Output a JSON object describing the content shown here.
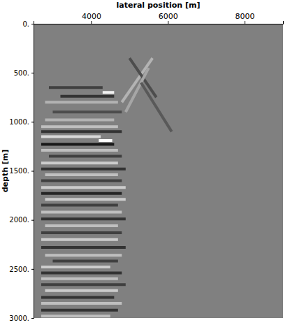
{
  "chart_data": {
    "type": "seismic_section",
    "x_label": "lateral position [m]",
    "y_label": "depth [m]",
    "xlim": [
      2500,
      9000
    ],
    "xticks": [
      4000,
      6000,
      8000
    ],
    "ylim": [
      0,
      3000
    ],
    "yticks": [
      {
        "value": 0,
        "label": "0."
      },
      {
        "value": 500,
        "label": "500."
      },
      {
        "value": 1000,
        "label": "1000."
      },
      {
        "value": 1500,
        "label": "1500."
      },
      {
        "value": 2000,
        "label": "2000."
      },
      {
        "value": 2500,
        "label": "2500."
      },
      {
        "value": 3000,
        "label": "3000."
      }
    ],
    "amplitude_range": [
      -1,
      1
    ],
    "reflectors": [
      {
        "x": [
          2900,
          4300
        ],
        "depth": [
          650,
          650
        ],
        "amplitude": -0.5
      },
      {
        "x": [
          4300,
          4600
        ],
        "depth": [
          700,
          700
        ],
        "amplitude": 0.9
      },
      {
        "x": [
          3200,
          4600
        ],
        "depth": [
          740,
          740
        ],
        "amplitude": -0.6
      },
      {
        "x": [
          2800,
          4700
        ],
        "depth": [
          800,
          800
        ],
        "amplitude": 0.4
      },
      {
        "x": [
          3000,
          4800
        ],
        "depth": [
          900,
          900
        ],
        "amplitude": -0.4
      },
      {
        "x": [
          2800,
          4600
        ],
        "depth": [
          980,
          980
        ],
        "amplitude": 0.4
      },
      {
        "x": [
          2700,
          4700
        ],
        "depth": [
          1050,
          1050
        ],
        "amplitude": 0.5
      },
      {
        "x": [
          2700,
          4800
        ],
        "depth": [
          1100,
          1100
        ],
        "amplitude": -0.6
      },
      {
        "x": [
          2700,
          4250
        ],
        "depth": [
          1150,
          1150
        ],
        "amplitude": 0.7
      },
      {
        "x": [
          4200,
          4550
        ],
        "depth": [
          1190,
          1190
        ],
        "amplitude": 1.0
      },
      {
        "x": [
          2700,
          4600
        ],
        "depth": [
          1230,
          1230
        ],
        "amplitude": -0.8
      },
      {
        "x": [
          2700,
          4700
        ],
        "depth": [
          1290,
          1290
        ],
        "amplitude": 0.5
      },
      {
        "x": [
          2900,
          4800
        ],
        "depth": [
          1350,
          1350
        ],
        "amplitude": -0.5
      },
      {
        "x": [
          2700,
          4700
        ],
        "depth": [
          1420,
          1420
        ],
        "amplitude": 0.6
      },
      {
        "x": [
          2700,
          4900
        ],
        "depth": [
          1480,
          1480
        ],
        "amplitude": -0.6
      },
      {
        "x": [
          2800,
          4700
        ],
        "depth": [
          1540,
          1540
        ],
        "amplitude": 0.5
      },
      {
        "x": [
          2700,
          4800
        ],
        "depth": [
          1600,
          1600
        ],
        "amplitude": -0.5
      },
      {
        "x": [
          2700,
          4900
        ],
        "depth": [
          1670,
          1670
        ],
        "amplitude": 0.6
      },
      {
        "x": [
          2700,
          4800
        ],
        "depth": [
          1730,
          1730
        ],
        "amplitude": -0.7
      },
      {
        "x": [
          2800,
          4900
        ],
        "depth": [
          1790,
          1790
        ],
        "amplitude": 0.6
      },
      {
        "x": [
          2700,
          4700
        ],
        "depth": [
          1850,
          1850
        ],
        "amplitude": -0.5
      },
      {
        "x": [
          2700,
          4800
        ],
        "depth": [
          1920,
          1920
        ],
        "amplitude": 0.5
      },
      {
        "x": [
          2700,
          4900
        ],
        "depth": [
          1990,
          1990
        ],
        "amplitude": -0.6
      },
      {
        "x": [
          2800,
          4700
        ],
        "depth": [
          2060,
          2060
        ],
        "amplitude": 0.5
      },
      {
        "x": [
          2700,
          4800
        ],
        "depth": [
          2130,
          2130
        ],
        "amplitude": -0.5
      },
      {
        "x": [
          2700,
          4700
        ],
        "depth": [
          2200,
          2200
        ],
        "amplitude": 0.6
      },
      {
        "x": [
          2700,
          4900
        ],
        "depth": [
          2280,
          2280
        ],
        "amplitude": -0.6
      },
      {
        "x": [
          2800,
          4800
        ],
        "depth": [
          2360,
          2360
        ],
        "amplitude": 0.5
      },
      {
        "x": [
          3000,
          4700
        ],
        "depth": [
          2420,
          2420
        ],
        "amplitude": -0.5
      },
      {
        "x": [
          2700,
          4500
        ],
        "depth": [
          2480,
          2480
        ],
        "amplitude": 0.6
      },
      {
        "x": [
          2700,
          4800
        ],
        "depth": [
          2540,
          2540
        ],
        "amplitude": -0.6
      },
      {
        "x": [
          2700,
          4700
        ],
        "depth": [
          2600,
          2600
        ],
        "amplitude": 0.5
      },
      {
        "x": [
          2700,
          4900
        ],
        "depth": [
          2660,
          2660
        ],
        "amplitude": -0.5
      },
      {
        "x": [
          2800,
          4700
        ],
        "depth": [
          2720,
          2720
        ],
        "amplitude": 0.6
      },
      {
        "x": [
          2700,
          4600
        ],
        "depth": [
          2790,
          2790
        ],
        "amplitude": -0.6
      },
      {
        "x": [
          2700,
          4800
        ],
        "depth": [
          2850,
          2850
        ],
        "amplitude": 0.5
      },
      {
        "x": [
          2700,
          4700
        ],
        "depth": [
          2920,
          2920
        ],
        "amplitude": -0.6
      },
      {
        "x": [
          2700,
          4500
        ],
        "depth": [
          2980,
          2980
        ],
        "amplitude": 0.5
      },
      {
        "x": [
          4800,
          5600
        ],
        "depth": [
          800,
          350
        ],
        "amplitude": 0.4
      },
      {
        "x": [
          5000,
          5700
        ],
        "depth": [
          350,
          750
        ],
        "amplitude": -0.4
      },
      {
        "x": [
          4900,
          5500
        ],
        "depth": [
          900,
          450
        ],
        "amplitude": 0.3
      },
      {
        "x": [
          5300,
          6100
        ],
        "depth": [
          600,
          1100
        ],
        "amplitude": -0.3
      }
    ]
  }
}
